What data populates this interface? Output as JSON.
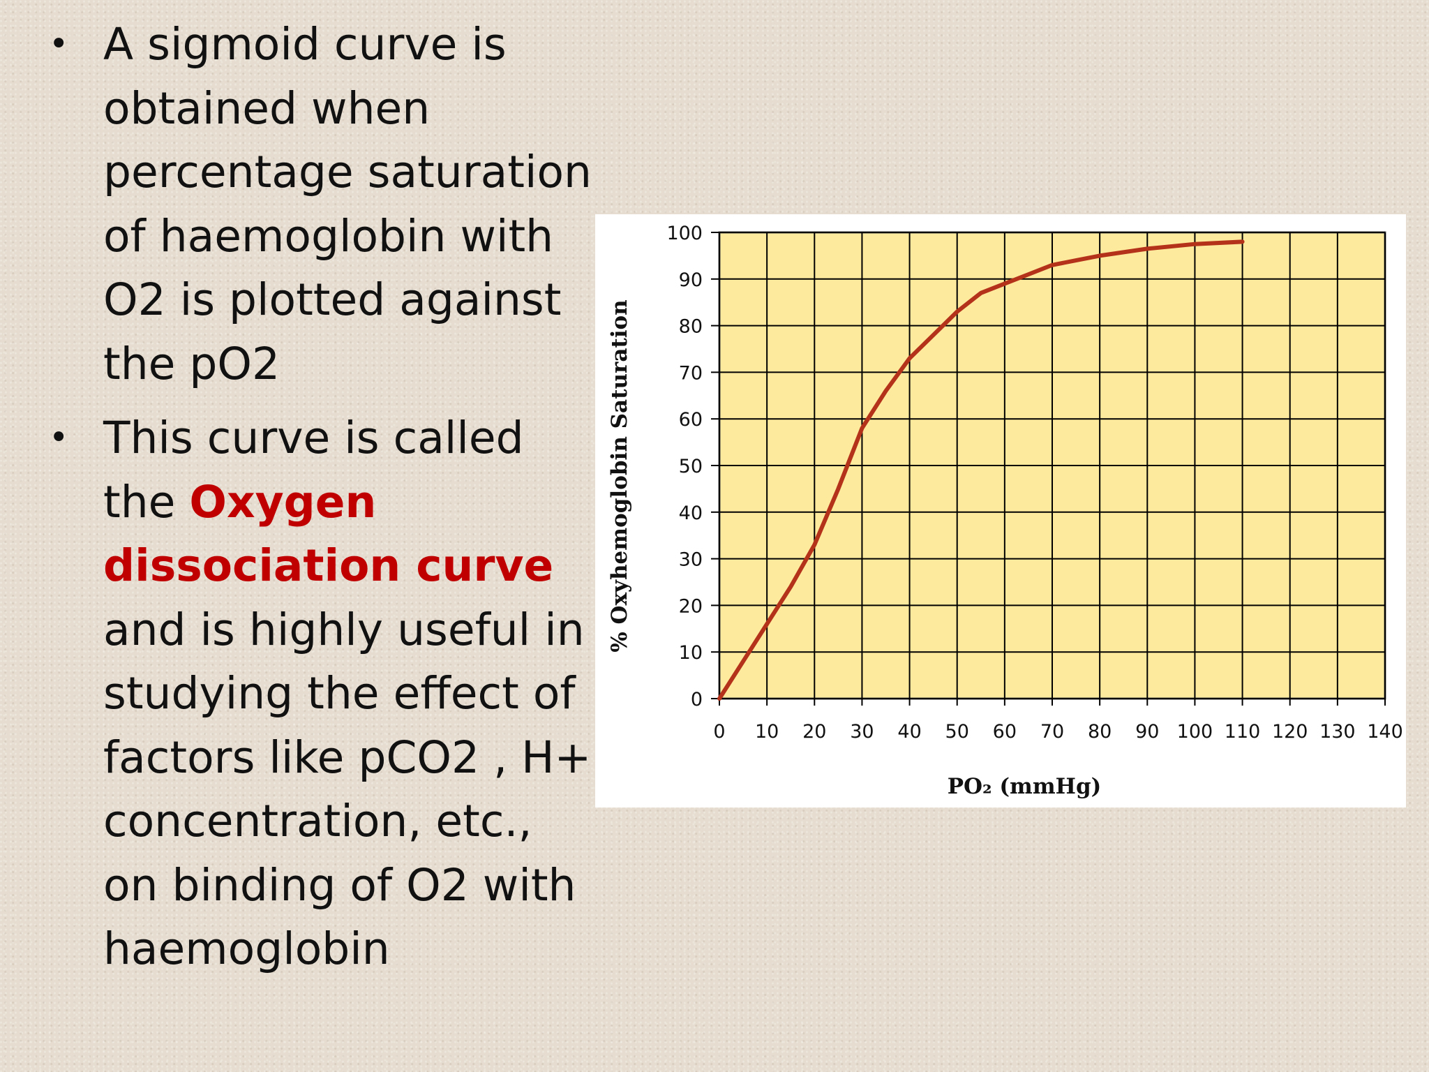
{
  "slide": {
    "bullets": [
      {
        "parts": [
          {
            "text": "A sigmoid curve is obtained when percentage saturation of haemoglobin with O2 is plotted against the pO2",
            "highlight": false
          }
        ]
      },
      {
        "parts": [
          {
            "text": " This curve is called the ",
            "highlight": false
          },
          {
            "text": "Oxygen dissociation curve",
            "highlight": true
          },
          {
            "text": " and is highly useful in studying the effect of factors like pCO2 , H+ concentration, etc., on binding of O2 with haemoglobin",
            "highlight": false
          }
        ]
      }
    ],
    "bullet_glyph": "•"
  },
  "chart_data": {
    "type": "line",
    "title": "",
    "xlabel": "PO₂ (mmHg)",
    "ylabel": "% Oxyhemoglobin Saturation",
    "xlim": [
      0,
      140
    ],
    "ylim": [
      0,
      100
    ],
    "x_ticks": [
      0,
      10,
      20,
      30,
      40,
      50,
      60,
      70,
      80,
      90,
      100,
      110,
      120,
      130,
      140
    ],
    "y_ticks": [
      0,
      10,
      20,
      30,
      40,
      50,
      60,
      70,
      80,
      90,
      100
    ],
    "grid": true,
    "colors": {
      "plot_background": "#fdea9c",
      "grid": "#000000",
      "curve": "#b5321a"
    },
    "series": [
      {
        "x": [
          0,
          5,
          10,
          15,
          20,
          25,
          30,
          35,
          40,
          45,
          50,
          55,
          60,
          65,
          70,
          75,
          80,
          90,
          100,
          110
        ],
        "y": [
          0,
          8,
          16,
          24,
          33,
          45,
          58,
          66,
          73,
          78,
          83,
          87,
          89,
          91,
          93,
          94,
          95,
          96.5,
          97.5,
          98
        ]
      }
    ]
  }
}
